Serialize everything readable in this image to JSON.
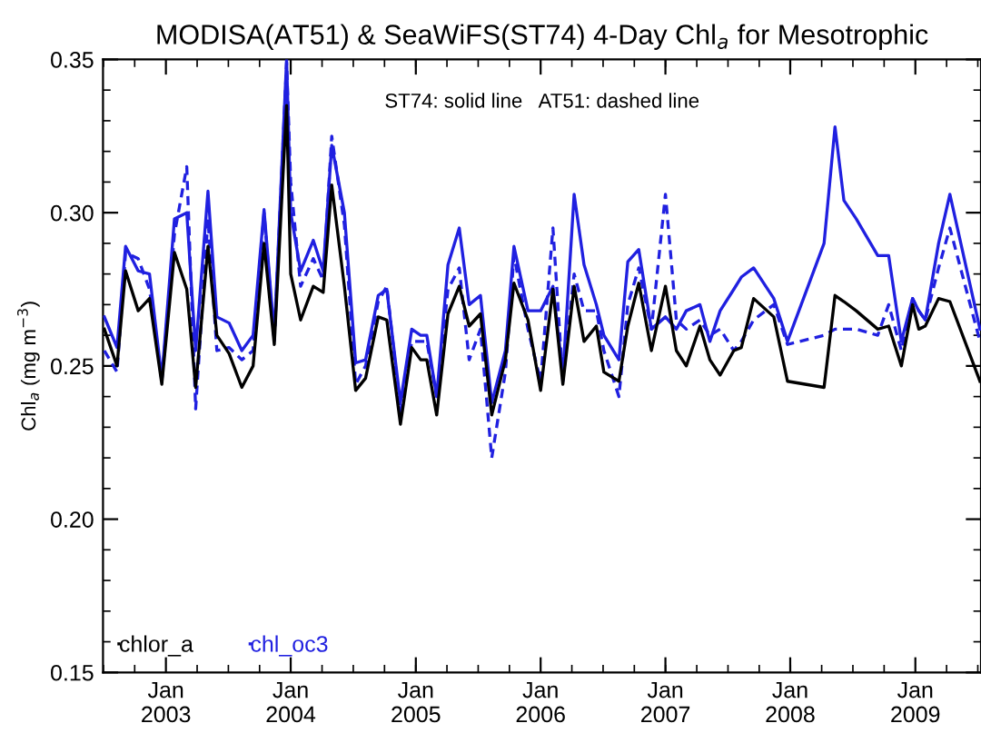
{
  "chart_data": {
    "type": "line",
    "title": "MODISA(AT51) & SeaWiFS(ST74) 4-Day Chl$_{a}$ for Mesotrophic",
    "ylabel": "Chl$_{a}$ (mg m$^{−3}$)",
    "annotations": [
      "ST74: solid line   AT51: dashed line"
    ],
    "x": [
      "2002-07-05",
      "2002-08-11",
      "2002-09-05",
      "2002-10-12",
      "2002-11-14",
      "2002-12-20",
      "2003-01-26",
      "2003-03-03",
      "2003-03-29",
      "2003-05-04",
      "2003-05-30",
      "2003-07-05",
      "2003-08-11",
      "2003-09-13",
      "2003-10-15",
      "2003-11-14",
      "2003-12-20",
      "2004-01-01",
      "2004-01-30",
      "2004-03-07",
      "2004-04-05",
      "2004-04-30",
      "2004-06-06",
      "2004-07-09",
      "2004-08-07",
      "2004-09-13",
      "2004-10-08",
      "2004-11-17",
      "2004-12-20",
      "2005-01-15",
      "2005-02-02",
      "2005-03-03",
      "2005-04-05",
      "2005-05-08",
      "2005-06-06",
      "2005-07-09",
      "2005-08-11",
      "2005-09-20",
      "2005-10-15",
      "2005-11-25",
      "2006-01-01",
      "2006-02-06",
      "2006-03-07",
      "2006-04-09",
      "2006-05-08",
      "2006-06-13",
      "2006-07-05",
      "2006-08-18",
      "2006-09-13",
      "2006-10-15",
      "2006-11-21",
      "2007-01-01",
      "2007-02-02",
      "2007-03-03",
      "2007-04-12",
      "2007-05-11",
      "2007-06-10",
      "2007-07-20",
      "2007-08-11",
      "2007-09-16",
      "2007-11-14",
      "2007-12-24",
      "2008-04-09",
      "2008-05-11",
      "2008-06-06",
      "2008-07-12",
      "2008-09-13",
      "2008-10-15",
      "2008-11-21",
      "2008-12-24",
      "2009-01-11",
      "2009-01-30",
      "2009-03-10",
      "2009-04-12",
      "2009-07-09"
    ],
    "series": [
      {
        "name": "chlor_a",
        "color": "#000000",
        "line_style": "solid",
        "values": [
          0.262,
          0.25,
          0.281,
          0.268,
          0.272,
          0.244,
          0.287,
          0.275,
          0.243,
          0.289,
          0.26,
          0.254,
          0.243,
          0.25,
          0.29,
          0.257,
          0.335,
          0.28,
          0.265,
          0.276,
          0.274,
          0.309,
          0.276,
          0.242,
          0.246,
          0.266,
          0.265,
          0.231,
          0.256,
          0.252,
          0.252,
          0.234,
          0.267,
          0.276,
          0.263,
          0.267,
          0.234,
          0.252,
          0.277,
          0.265,
          0.242,
          0.275,
          0.244,
          0.276,
          0.258,
          0.263,
          0.248,
          0.245,
          0.263,
          0.277,
          0.255,
          0.276,
          0.255,
          0.25,
          0.263,
          0.252,
          0.247,
          0.255,
          0.256,
          0.272,
          0.266,
          0.245,
          0.243,
          0.273,
          0.271,
          0.268,
          0.262,
          0.263,
          0.25,
          0.27,
          0.262,
          0.263,
          0.272,
          0.271,
          0.245
        ]
      },
      {
        "name": "chl_oc3",
        "color": "#2020e0",
        "line_style": "solid",
        "values": [
          0.266,
          0.256,
          0.289,
          0.281,
          0.28,
          0.246,
          0.298,
          0.3,
          0.255,
          0.307,
          0.266,
          0.264,
          0.255,
          0.26,
          0.301,
          0.26,
          0.35,
          0.3,
          0.281,
          0.291,
          0.281,
          0.322,
          0.3,
          0.251,
          0.252,
          0.273,
          0.275,
          0.238,
          0.262,
          0.26,
          0.26,
          0.24,
          0.283,
          0.295,
          0.27,
          0.273,
          0.238,
          0.255,
          0.289,
          0.268,
          0.268,
          0.276,
          0.247,
          0.306,
          0.283,
          0.27,
          0.26,
          0.252,
          0.284,
          0.288,
          0.262,
          0.266,
          0.262,
          0.268,
          0.27,
          0.258,
          0.268,
          0.275,
          0.279,
          0.282,
          0.272,
          0.258,
          0.29,
          0.328,
          0.304,
          0.298,
          0.286,
          0.286,
          0.258,
          0.272,
          0.268,
          0.265,
          0.29,
          0.306,
          0.262
        ]
      },
      {
        "color": "#2020e0",
        "line_style": "dashed",
        "values": [
          0.255,
          0.248,
          0.287,
          0.285,
          0.275,
          0.245,
          0.293,
          0.315,
          0.236,
          0.298,
          0.255,
          0.256,
          0.252,
          0.255,
          0.3,
          0.258,
          0.349,
          0.31,
          0.276,
          0.285,
          0.278,
          0.325,
          0.296,
          0.244,
          0.25,
          0.271,
          0.276,
          0.235,
          0.258,
          0.258,
          0.258,
          0.24,
          0.275,
          0.282,
          0.252,
          0.262,
          0.22,
          0.248,
          0.286,
          0.262,
          0.245,
          0.295,
          0.245,
          0.28,
          0.268,
          0.268,
          0.255,
          0.24,
          0.27,
          0.282,
          0.262,
          0.306,
          0.265,
          0.262,
          0.265,
          0.26,
          0.262,
          0.255,
          0.258,
          0.265,
          0.27,
          0.257,
          0.26,
          0.262,
          0.262,
          0.262,
          0.26,
          0.27,
          0.255,
          0.272,
          0.268,
          0.265,
          0.282,
          0.295,
          0.258
        ]
      }
    ],
    "xlim": [
      "2002-07-01",
      "2009-07-12"
    ],
    "xticks": [
      {
        "value": "2003-01-01",
        "label": "Jan\n2003"
      },
      {
        "value": "2004-01-01",
        "label": "Jan\n2004"
      },
      {
        "value": "2005-01-01",
        "label": "Jan\n2005"
      },
      {
        "value": "2006-01-01",
        "label": "Jan\n2006"
      },
      {
        "value": "2007-01-01",
        "label": "Jan\n2007"
      },
      {
        "value": "2008-01-01",
        "label": "Jan\n2008"
      },
      {
        "value": "2009-01-01",
        "label": "Jan\n2009"
      }
    ],
    "ylim": [
      0.15,
      0.35
    ],
    "yticks": [
      {
        "value": 0.15,
        "label": "0.15"
      },
      {
        "value": 0.2,
        "label": "0.20"
      },
      {
        "value": 0.25,
        "label": "0.25"
      },
      {
        "value": 0.3,
        "label": "0.30"
      },
      {
        "value": 0.35,
        "label": "0.35"
      }
    ],
    "grid": false,
    "legend": "bottom left",
    "marker": "none"
  }
}
